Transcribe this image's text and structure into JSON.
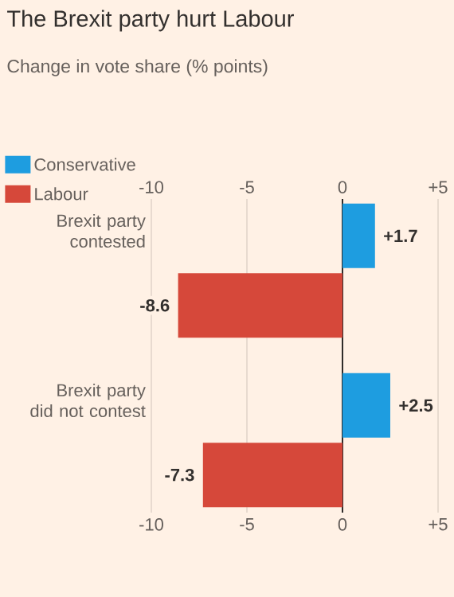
{
  "chart_data": {
    "type": "bar",
    "orientation": "horizontal",
    "title": "The Brexit party hurt Labour",
    "subtitle": "Change in vote share (% points)",
    "categories": [
      "Brexit party contested",
      "Brexit party did not contest"
    ],
    "series": [
      {
        "name": "Conservative",
        "color": "#1e9de0",
        "values": [
          1.7,
          2.5
        ],
        "value_labels": [
          "+1.7",
          "+2.5"
        ]
      },
      {
        "name": "Labour",
        "color": "#d6483a",
        "values": [
          -8.6,
          -7.3
        ],
        "value_labels": [
          "-8.6",
          "-7.3"
        ]
      }
    ],
    "xlim": [
      -10,
      5
    ],
    "xticks": [
      -10,
      -5,
      0,
      {
        "value": 5,
        "label": "+5"
      }
    ],
    "x2lim": [
      -10,
      5
    ],
    "x2ticks": [
      -10,
      -5,
      0,
      {
        "value": 5,
        "label": "+5"
      }
    ],
    "grid": "x",
    "legend": "top left"
  }
}
